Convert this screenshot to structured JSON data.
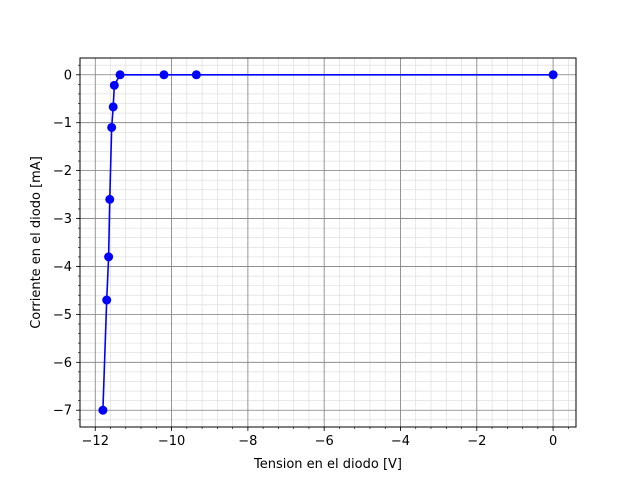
{
  "chart_data": {
    "type": "line",
    "xlabel": "Tension en el diodo [V]",
    "ylabel": "Corriente en el diodo [mA]",
    "xlim": [
      -12.4,
      0.6
    ],
    "ylim": [
      -7.35,
      0.35
    ],
    "xticks": [
      -12,
      -10,
      -8,
      -6,
      -4,
      -2,
      0
    ],
    "yticks": [
      -7,
      -6,
      -5,
      -4,
      -3,
      -2,
      -1,
      0
    ],
    "x_minor_step": 0.4,
    "y_minor_step": 0.2,
    "grid": {
      "major": true,
      "minor": true
    },
    "colors": {
      "series": "#0000ff",
      "marker": "#0000ff",
      "major_grid": "#808080",
      "minor_grid": "#d9d9d9",
      "axes": "#000000"
    },
    "series": [
      {
        "x": [
          -11.8,
          -11.7,
          -11.65,
          -11.62,
          -11.57,
          -11.53,
          -11.5,
          -11.35,
          -10.2,
          -9.35,
          0.0
        ],
        "y": [
          -7.0,
          -4.7,
          -3.8,
          -2.6,
          -1.1,
          -0.67,
          -0.22,
          0.0,
          0.0,
          0.0,
          0.0
        ]
      }
    ]
  }
}
